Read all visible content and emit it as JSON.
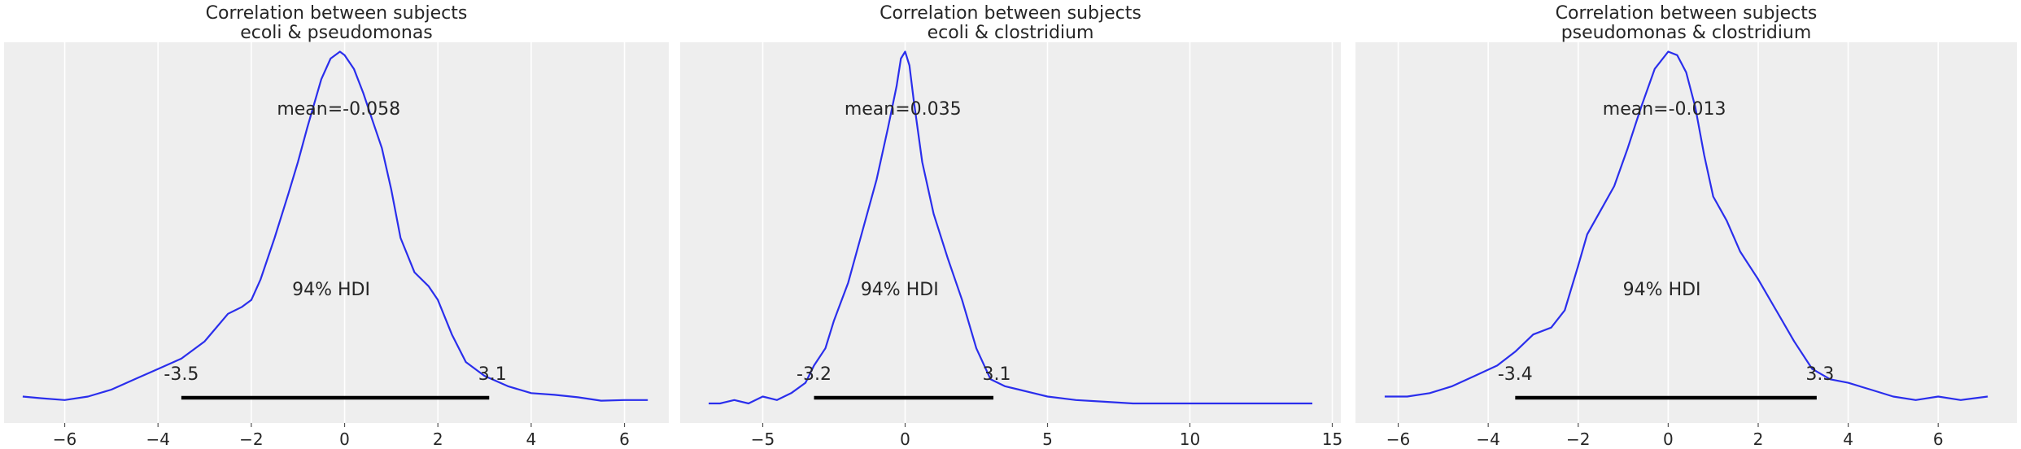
{
  "chart_data": [
    {
      "type": "area",
      "title": "Correlation between subjects",
      "subtitle": "ecoli & pseudomonas",
      "xlabel": "",
      "ylabel": "",
      "xlim": [
        -7.3,
        6.95
      ],
      "ylim": [
        0,
        1.08
      ],
      "xticks": [
        -6,
        -4,
        -2,
        0,
        2,
        4,
        6
      ],
      "grid": true,
      "line_color": "#2a2eec",
      "mean_label": "mean=-0.058",
      "hdi_label": "94% HDI",
      "hdi": [
        -3.5,
        3.1
      ],
      "hdi_low_label": "-3.5",
      "hdi_high_label": "3.1",
      "density": {
        "x": [
          -6.9,
          -6.5,
          -6.0,
          -5.5,
          -5.0,
          -4.5,
          -4.0,
          -3.5,
          -3.0,
          -2.5,
          -2.2,
          -2.0,
          -1.8,
          -1.5,
          -1.2,
          -1.0,
          -0.8,
          -0.5,
          -0.3,
          -0.1,
          0.0,
          0.2,
          0.4,
          0.6,
          0.8,
          1.0,
          1.2,
          1.5,
          1.8,
          2.0,
          2.3,
          2.6,
          3.0,
          3.5,
          4.0,
          4.5,
          5.0,
          5.5,
          6.0,
          6.5
        ],
        "y": [
          0.02,
          0.015,
          0.01,
          0.02,
          0.04,
          0.07,
          0.1,
          0.13,
          0.18,
          0.26,
          0.28,
          0.3,
          0.36,
          0.48,
          0.61,
          0.7,
          0.8,
          0.94,
          1.0,
          1.02,
          1.01,
          0.97,
          0.9,
          0.82,
          0.74,
          0.62,
          0.48,
          0.38,
          0.34,
          0.3,
          0.2,
          0.12,
          0.08,
          0.05,
          0.03,
          0.025,
          0.018,
          0.008,
          0.01,
          0.01
        ]
      }
    },
    {
      "type": "area",
      "title": "Correlation between subjects",
      "subtitle": "ecoli & clostridium",
      "xlabel": "",
      "ylabel": "",
      "xlim": [
        -7.9,
        15.3
      ],
      "ylim": [
        0,
        1.08
      ],
      "xticks": [
        -5,
        0,
        5,
        10,
        15
      ],
      "grid": true,
      "line_color": "#2a2eec",
      "mean_label": "mean=0.035",
      "hdi_label": "94% HDI",
      "hdi": [
        -3.2,
        3.1
      ],
      "hdi_low_label": "-3.2",
      "hdi_high_label": "3.1",
      "density": {
        "x": [
          -6.9,
          -6.5,
          -6.0,
          -5.5,
          -5.0,
          -4.5,
          -4.0,
          -3.5,
          -3.2,
          -2.8,
          -2.5,
          -2.0,
          -1.5,
          -1.0,
          -0.6,
          -0.3,
          -0.15,
          0.0,
          0.15,
          0.3,
          0.6,
          1.0,
          1.5,
          2.0,
          2.5,
          3.0,
          3.5,
          4.0,
          5.0,
          6.0,
          7.0,
          8.0,
          10.0,
          12.0,
          14.3
        ],
        "y": [
          0.0,
          0.0,
          0.01,
          0.0,
          0.02,
          0.01,
          0.03,
          0.06,
          0.11,
          0.16,
          0.24,
          0.35,
          0.5,
          0.65,
          0.8,
          0.92,
          1.0,
          1.02,
          0.98,
          0.88,
          0.7,
          0.55,
          0.42,
          0.3,
          0.16,
          0.07,
          0.05,
          0.04,
          0.02,
          0.01,
          0.005,
          0.0,
          0.0,
          0.0,
          0.0
        ]
      }
    },
    {
      "type": "area",
      "title": "Correlation between subjects",
      "subtitle": "pseudomonas & clostridium",
      "xlabel": "",
      "ylabel": "",
      "xlim": [
        -6.95,
        7.75
      ],
      "ylim": [
        0,
        1.08
      ],
      "xticks": [
        -6,
        -4,
        -2,
        0,
        2,
        4,
        6
      ],
      "grid": true,
      "line_color": "#2a2eec",
      "mean_label": "mean=-0.013",
      "hdi_label": "94% HDI",
      "hdi": [
        -3.4,
        3.3
      ],
      "hdi_low_label": "-3.4",
      "hdi_high_label": "3.3",
      "density": {
        "x": [
          -6.3,
          -5.8,
          -5.3,
          -4.8,
          -4.3,
          -3.8,
          -3.4,
          -3.0,
          -2.6,
          -2.3,
          -2.0,
          -1.8,
          -1.5,
          -1.2,
          -0.9,
          -0.6,
          -0.3,
          0.0,
          0.2,
          0.4,
          0.6,
          0.8,
          1.0,
          1.3,
          1.6,
          2.0,
          2.4,
          2.8,
          3.2,
          3.6,
          4.0,
          4.5,
          5.0,
          5.5,
          6.0,
          6.5,
          7.1
        ],
        "y": [
          0.02,
          0.02,
          0.03,
          0.05,
          0.08,
          0.11,
          0.15,
          0.2,
          0.22,
          0.27,
          0.4,
          0.49,
          0.56,
          0.63,
          0.74,
          0.86,
          0.97,
          1.02,
          1.01,
          0.96,
          0.86,
          0.72,
          0.6,
          0.53,
          0.44,
          0.36,
          0.27,
          0.18,
          0.1,
          0.07,
          0.06,
          0.04,
          0.02,
          0.01,
          0.02,
          0.01,
          0.02
        ]
      }
    }
  ]
}
